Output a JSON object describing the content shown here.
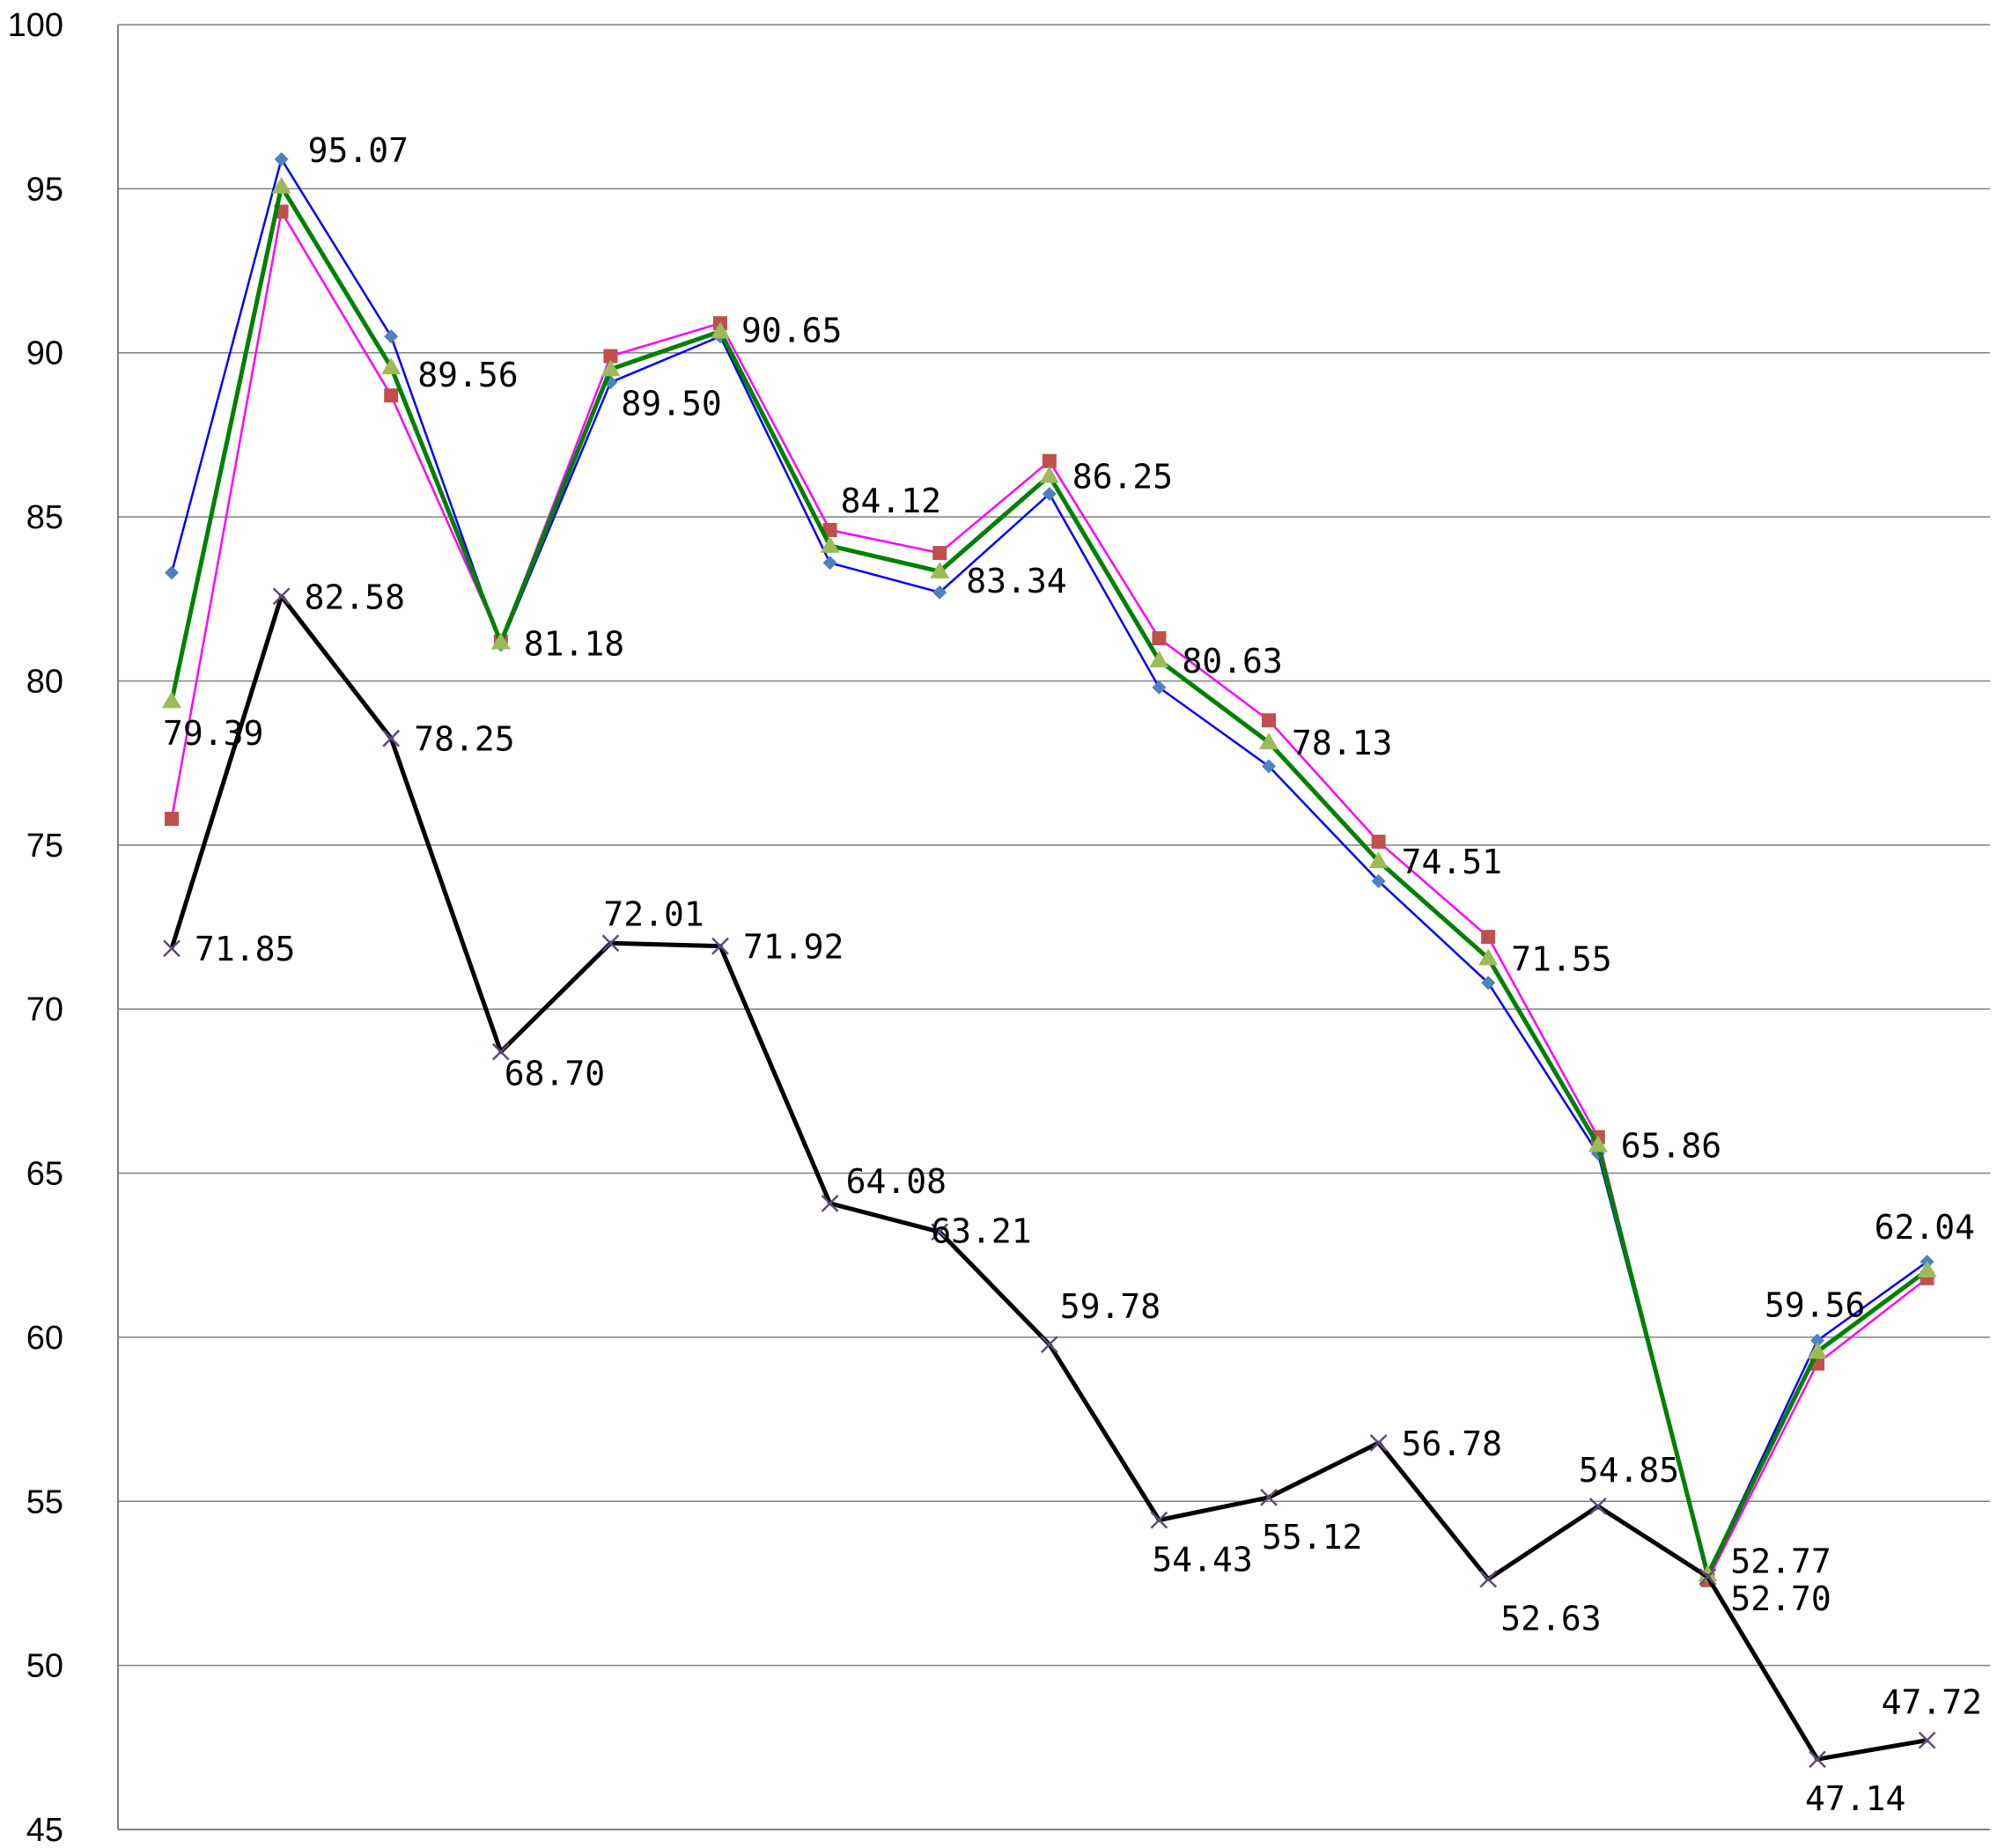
{
  "chart_data": {
    "type": "line",
    "title": "",
    "xlabel": "",
    "ylabel": "",
    "ylim": [
      45,
      100
    ],
    "yticks": [
      45,
      50,
      55,
      60,
      65,
      70,
      75,
      80,
      85,
      90,
      95,
      100
    ],
    "grid": "horizontal",
    "legend": "none",
    "x": [
      1,
      2,
      3,
      4,
      5,
      6,
      7,
      8,
      9,
      10,
      11,
      12,
      13,
      14,
      15,
      16,
      17
    ],
    "series": [
      {
        "color": "#0000ff",
        "marker": "diamond",
        "marker_color": "#4f81bd",
        "values": [
          83.3,
          95.9,
          90.5,
          81.1,
          89.1,
          90.5,
          83.6,
          82.7,
          85.7,
          79.8,
          77.4,
          73.9,
          70.8,
          65.6,
          52.8,
          59.9,
          62.3
        ]
      },
      {
        "color": "#ff00ff",
        "marker": "square",
        "marker_color": "#c0504d",
        "values": [
          75.8,
          94.3,
          88.7,
          81.2,
          89.9,
          90.9,
          84.6,
          83.9,
          86.7,
          81.3,
          78.8,
          75.1,
          72.2,
          66.1,
          52.6,
          59.2,
          61.8
        ]
      },
      {
        "color": "#008000",
        "marker": "triangle",
        "marker_color": "#9bbb59",
        "values": [
          79.39,
          95.07,
          89.56,
          81.18,
          89.5,
          90.65,
          84.12,
          83.34,
          86.25,
          80.63,
          78.13,
          74.51,
          71.55,
          65.86,
          52.77,
          59.56,
          62.04
        ],
        "labels": [
          "79.39",
          "95.07",
          "89.56",
          "81.18",
          "89.50",
          "90.65",
          "84.12",
          "83.34",
          "86.25",
          "80.63",
          "78.13",
          "74.51",
          "71.55",
          "65.86",
          "52.77",
          "59.56",
          "62.04"
        ]
      },
      {
        "color": "#000000",
        "marker": "x",
        "marker_color": "#604a7b",
        "values": [
          71.85,
          82.58,
          78.25,
          68.7,
          72.01,
          71.92,
          64.08,
          63.21,
          59.78,
          54.43,
          55.12,
          56.78,
          52.63,
          54.85,
          52.7,
          47.14,
          47.72
        ],
        "labels": [
          "71.85",
          "82.58",
          "78.25",
          "68.70",
          "72.01",
          "71.92",
          "64.08",
          "63.21",
          "59.78",
          "54.43",
          "55.12",
          "56.78",
          "52.63",
          "54.85",
          "52.70",
          "47.14",
          "47.72"
        ]
      }
    ]
  }
}
